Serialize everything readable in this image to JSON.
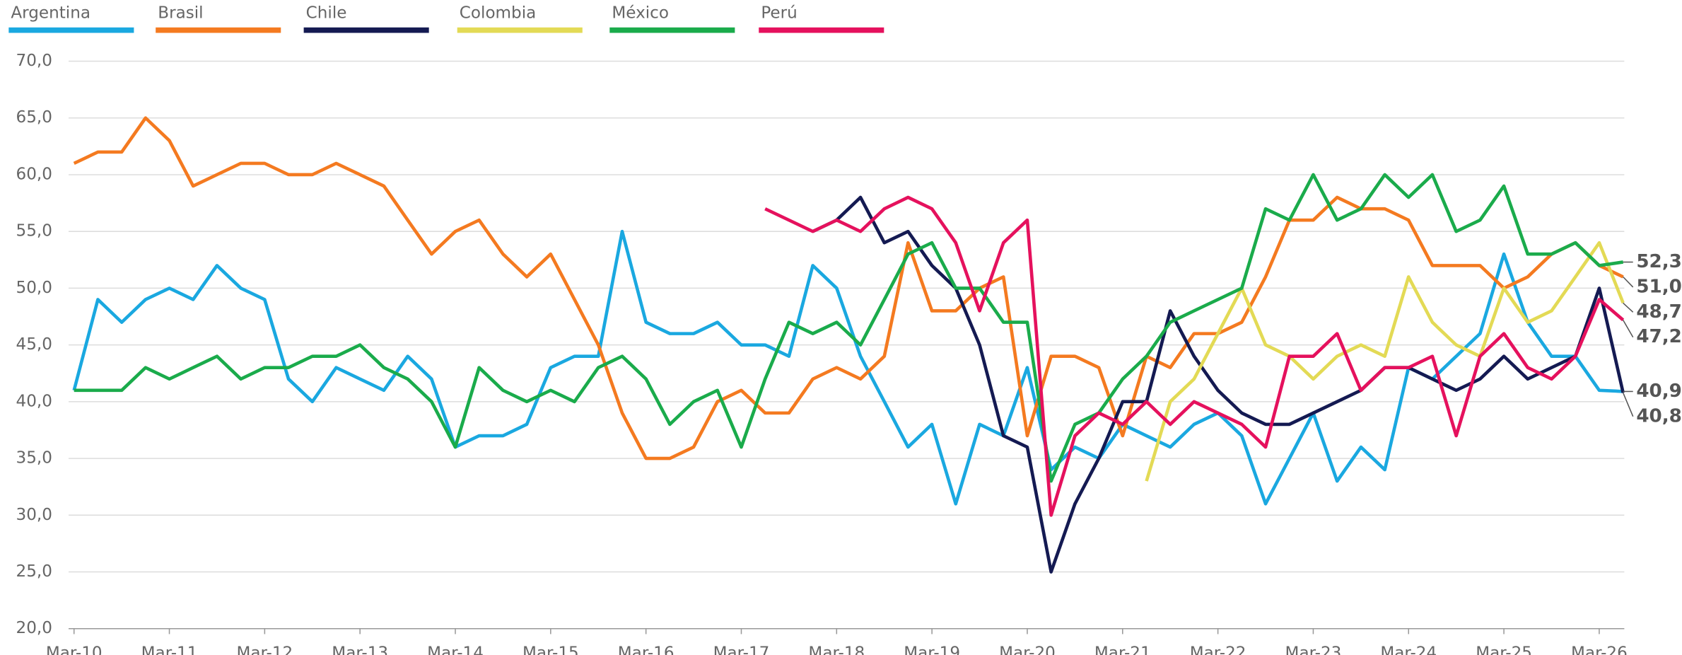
{
  "chart_data": {
    "type": "line",
    "categories": [
      "Mar-10",
      null,
      null,
      null,
      "Mar-11",
      null,
      null,
      null,
      "Mar-12",
      null,
      null,
      null,
      "Mar-13",
      null,
      null,
      null,
      "Mar-14",
      null,
      null,
      null,
      "Mar-15",
      null,
      null,
      null,
      "Mar-16",
      null,
      null,
      null,
      "Mar-17",
      null,
      null,
      null,
      "Mar-18",
      null,
      null,
      null,
      "Mar-19",
      null,
      null,
      null,
      "Mar-20",
      null,
      null,
      null,
      "Mar-21",
      null,
      null,
      null,
      "Mar-22",
      null,
      null,
      null,
      "Mar-23",
      null,
      null,
      null,
      "Mar-24",
      null,
      null,
      null,
      "Mar-25",
      null,
      null,
      null,
      "Mar-26",
      null
    ],
    "ylim": [
      20,
      70
    ],
    "yticks": [
      {
        "value": 20,
        "label": "20,0"
      },
      {
        "value": 25,
        "label": "25,0"
      },
      {
        "value": 30,
        "label": "30,0"
      },
      {
        "value": 35,
        "label": "35,0"
      },
      {
        "value": 40,
        "label": "40,0"
      },
      {
        "value": 45,
        "label": "45,0"
      },
      {
        "value": 50,
        "label": "50,0"
      },
      {
        "value": 55,
        "label": "55,0"
      },
      {
        "value": 60,
        "label": "60,0"
      },
      {
        "value": 65,
        "label": "65,0"
      },
      {
        "value": 70,
        "label": "70,0"
      }
    ],
    "grid": true,
    "series": [
      {
        "name": "Argentina",
        "color": "#1aa8e0",
        "end_label": "40,9",
        "values": [
          41,
          49,
          47,
          49,
          50,
          49,
          52,
          50,
          49,
          42,
          40,
          43,
          42,
          41,
          44,
          42,
          36,
          37,
          37,
          38,
          43,
          44,
          44,
          55,
          47,
          46,
          46,
          47,
          45,
          45,
          44,
          52,
          50,
          44,
          40,
          36,
          38,
          31,
          38,
          37,
          43,
          34,
          36,
          35,
          38,
          37,
          36,
          38,
          39,
          37,
          31,
          35,
          39,
          33,
          36,
          34,
          43,
          42,
          44,
          46,
          53,
          47,
          44,
          44,
          41,
          40.9
        ]
      },
      {
        "name": "Brasil",
        "color": "#f47a20",
        "end_label": "51,0",
        "values": [
          61,
          62,
          62,
          65,
          63,
          59,
          60,
          61,
          61,
          60,
          60,
          61,
          60,
          59,
          56,
          53,
          55,
          56,
          53,
          51,
          53,
          49,
          45,
          39,
          35,
          35,
          36,
          40,
          41,
          39,
          39,
          42,
          43,
          42,
          44,
          54,
          48,
          48,
          50,
          51,
          37,
          44,
          44,
          43,
          37,
          44,
          43,
          46,
          46,
          47,
          51,
          56,
          56,
          58,
          57,
          57,
          56,
          52,
          52,
          52,
          50,
          51,
          53,
          54,
          52,
          51.0
        ]
      },
      {
        "name": "Chile",
        "color": "#141a52",
        "end_label": "40,8",
        "values": [
          null,
          null,
          null,
          null,
          null,
          null,
          null,
          null,
          null,
          null,
          null,
          null,
          null,
          null,
          null,
          null,
          null,
          null,
          null,
          null,
          null,
          null,
          null,
          null,
          null,
          null,
          null,
          null,
          null,
          null,
          null,
          55,
          56,
          58,
          54,
          55,
          52,
          50,
          45,
          37,
          36,
          25,
          31,
          35,
          40,
          40,
          48,
          44,
          41,
          39,
          38,
          38,
          39,
          40,
          41,
          43,
          43,
          42,
          41,
          42,
          44,
          42,
          43,
          44,
          50,
          40.8
        ]
      },
      {
        "name": "Colombia",
        "color": "#e3da55",
        "end_label": "48,7",
        "values": [
          null,
          null,
          null,
          null,
          null,
          null,
          null,
          null,
          null,
          null,
          null,
          null,
          null,
          null,
          null,
          null,
          null,
          null,
          null,
          null,
          null,
          null,
          null,
          null,
          null,
          null,
          null,
          null,
          null,
          null,
          null,
          null,
          null,
          null,
          null,
          null,
          null,
          null,
          null,
          null,
          null,
          null,
          null,
          null,
          null,
          33,
          40,
          42,
          46,
          50,
          45,
          44,
          42,
          44,
          45,
          44,
          51,
          47,
          45,
          44,
          50,
          47,
          48,
          51,
          54,
          48.7
        ]
      },
      {
        "name": "México",
        "color": "#1aab4b",
        "end_label": "52,3",
        "values": [
          41,
          41,
          41,
          43,
          42,
          43,
          44,
          42,
          43,
          43,
          44,
          44,
          45,
          43,
          42,
          40,
          36,
          43,
          41,
          40,
          41,
          40,
          43,
          44,
          42,
          38,
          40,
          41,
          36,
          42,
          47,
          46,
          47,
          45,
          49,
          53,
          54,
          50,
          50,
          47,
          47,
          33,
          38,
          39,
          42,
          44,
          47,
          48,
          49,
          50,
          57,
          56,
          60,
          56,
          57,
          60,
          58,
          60,
          55,
          56,
          59,
          53,
          53,
          54,
          52,
          52.3
        ]
      },
      {
        "name": "Perú",
        "color": "#e5115d",
        "end_label": "47,2",
        "values": [
          null,
          null,
          null,
          null,
          null,
          null,
          null,
          null,
          null,
          null,
          null,
          null,
          null,
          null,
          null,
          null,
          null,
          null,
          null,
          null,
          null,
          null,
          null,
          null,
          null,
          null,
          null,
          null,
          null,
          57,
          56,
          55,
          56,
          55,
          57,
          58,
          57,
          54,
          48,
          54,
          56,
          30,
          37,
          39,
          38,
          40,
          38,
          40,
          39,
          38,
          36,
          44,
          44,
          46,
          41,
          43,
          43,
          44,
          37,
          44,
          46,
          43,
          42,
          44,
          49,
          47.2
        ]
      }
    ]
  }
}
